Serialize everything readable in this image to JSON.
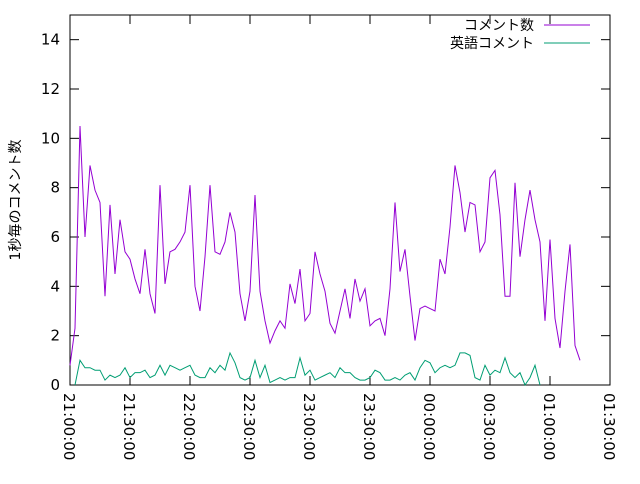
{
  "chart_data": {
    "type": "line",
    "title": "",
    "xlabel": "",
    "ylabel": "1秒毎のコメント数",
    "ylim": [
      0,
      15
    ],
    "xlim": [
      "21:00:00",
      "01:30:00"
    ],
    "x_ticks": [
      "21:00:00",
      "21:30:00",
      "22:00:00",
      "22:30:00",
      "23:00:00",
      "23:30:00",
      "00:00:00",
      "00:30:00",
      "01:00:00",
      "01:30:00"
    ],
    "y_ticks": [
      "0",
      "2",
      "4",
      "6",
      "8",
      "10",
      "12",
      "14"
    ],
    "grid": false,
    "legend_position": "top-right",
    "x_step_minutes": 2.5,
    "series": [
      {
        "name": "コメント数",
        "color": "#9400d3",
        "x_start": "21:00:00",
        "values": [
          0.8,
          2.3,
          10.5,
          6.0,
          8.9,
          7.9,
          7.4,
          3.6,
          7.3,
          4.5,
          6.7,
          5.4,
          5.1,
          4.3,
          3.7,
          5.5,
          3.7,
          2.9,
          8.1,
          4.1,
          5.4,
          5.5,
          5.8,
          6.2,
          8.1,
          4.0,
          3.0,
          5.2,
          8.1,
          5.4,
          5.3,
          5.8,
          7.0,
          6.2,
          3.7,
          2.6,
          3.8,
          7.7,
          3.8,
          2.6,
          1.7,
          2.2,
          2.6,
          2.3,
          4.1,
          3.3,
          4.7,
          2.6,
          2.9,
          5.4,
          4.5,
          3.8,
          2.5,
          2.1,
          3.0,
          3.9,
          2.7,
          4.3,
          3.4,
          3.9,
          2.4,
          2.6,
          2.7,
          2.0,
          3.9,
          7.4,
          4.6,
          5.5,
          3.6,
          1.8,
          3.1,
          3.2,
          3.1,
          3.0,
          5.1,
          4.5,
          6.4,
          8.9,
          7.8,
          6.2,
          7.4,
          7.3,
          5.4,
          5.8,
          8.4,
          8.7,
          6.9,
          3.6,
          3.6,
          8.2,
          5.2,
          6.7,
          7.9,
          6.7,
          5.8,
          2.6,
          5.9,
          2.7,
          1.5,
          3.8,
          5.7,
          1.6,
          1.0
        ]
      },
      {
        "name": "英語コメント",
        "color": "#009e73",
        "x_start": "21:02:30",
        "values": [
          0.0,
          1.0,
          0.7,
          0.7,
          0.6,
          0.6,
          0.2,
          0.4,
          0.3,
          0.4,
          0.7,
          0.3,
          0.5,
          0.5,
          0.6,
          0.3,
          0.4,
          0.8,
          0.4,
          0.8,
          0.7,
          0.6,
          0.7,
          0.8,
          0.4,
          0.3,
          0.3,
          0.7,
          0.5,
          0.8,
          0.6,
          1.3,
          0.9,
          0.3,
          0.2,
          0.3,
          1.0,
          0.3,
          0.8,
          0.1,
          0.2,
          0.3,
          0.2,
          0.3,
          0.3,
          1.1,
          0.4,
          0.6,
          0.2,
          0.3,
          0.4,
          0.5,
          0.3,
          0.7,
          0.5,
          0.5,
          0.3,
          0.2,
          0.2,
          0.3,
          0.6,
          0.5,
          0.2,
          0.2,
          0.3,
          0.2,
          0.4,
          0.5,
          0.2,
          0.7,
          1.0,
          0.9,
          0.5,
          0.7,
          0.8,
          0.7,
          0.8,
          1.3,
          1.3,
          1.2,
          0.3,
          0.2,
          0.8,
          0.4,
          0.6,
          0.5,
          1.1,
          0.5,
          0.3,
          0.5,
          0.0,
          0.3,
          0.8,
          0.0
        ]
      }
    ]
  }
}
